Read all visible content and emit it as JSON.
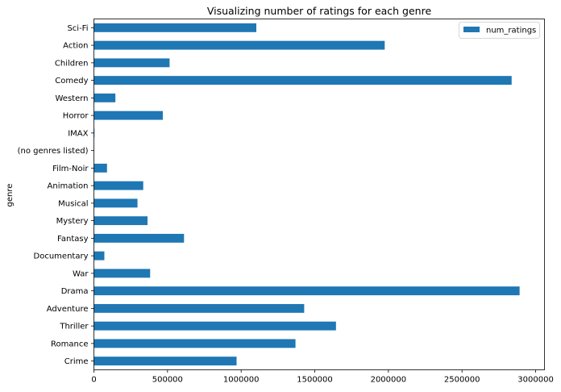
{
  "chart_data": {
    "type": "bar",
    "orientation": "horizontal",
    "title": "Visualizing number of ratings for each genre",
    "xlabel": "",
    "ylabel": "genre",
    "xlim": [
      0,
      3060000
    ],
    "x_ticks": [
      0,
      500000,
      1000000,
      1500000,
      2000000,
      2500000,
      3000000
    ],
    "x_tick_labels": [
      "0",
      "500000",
      "1000000",
      "1500000",
      "2000000",
      "2500000",
      "3000000"
    ],
    "grid": false,
    "legend": {
      "placement": "top-right"
    },
    "categories": [
      "Sci-Fi",
      "Action",
      "Children",
      "Comedy",
      "Western",
      "Horror",
      "IMAX",
      "(no genres listed)",
      "Film-Noir",
      "Animation",
      "Musical",
      "Mystery",
      "Fantasy",
      "Documentary",
      "War",
      "Drama",
      "Adventure",
      "Thriller",
      "Romance",
      "Crime"
    ],
    "series": [
      {
        "name": "num_ratings",
        "color": "#1f77b4",
        "values": [
          1103000,
          1975000,
          514000,
          2837000,
          146000,
          468000,
          4000,
          1000,
          89000,
          335000,
          296000,
          364000,
          612000,
          71000,
          382000,
          2891000,
          1428000,
          1644000,
          1369000,
          969000
        ]
      }
    ]
  }
}
